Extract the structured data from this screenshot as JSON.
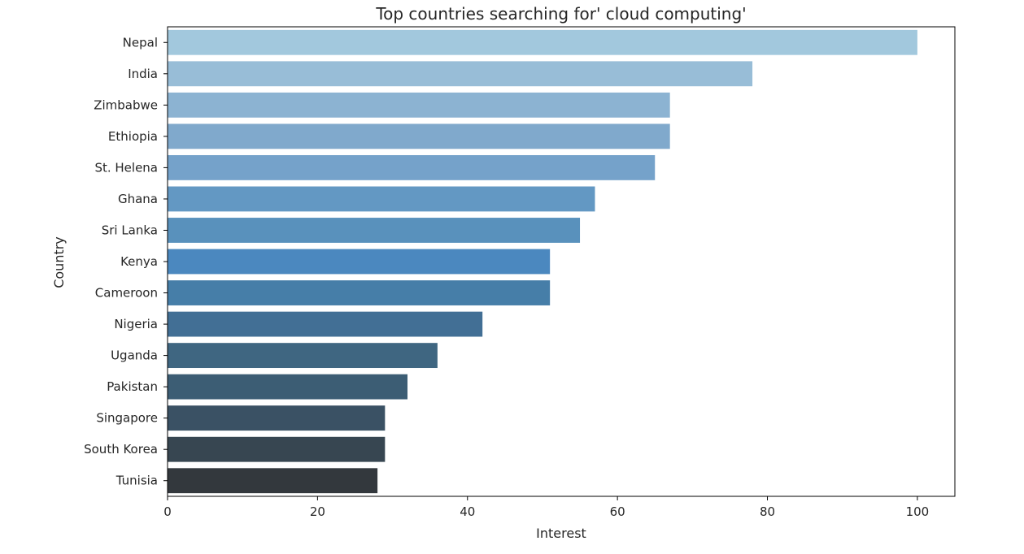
{
  "chart_data": {
    "type": "bar",
    "orientation": "horizontal",
    "title": "Top countries searching for' cloud computing'",
    "xlabel": "Interest",
    "ylabel": "Country",
    "xlim": [
      0,
      105
    ],
    "xticks": [
      "0",
      "20",
      "40",
      "60",
      "80",
      "100"
    ],
    "grid": false,
    "categories": [
      "Nepal",
      "India",
      "Zimbabwe",
      "Ethiopia",
      "St. Helena",
      "Ghana",
      "Sri Lanka",
      "Kenya",
      "Cameroon",
      "Nigeria",
      "Uganda",
      "Pakistan",
      "Singapore",
      "South Korea",
      "Tunisia"
    ],
    "values": [
      100,
      78,
      67,
      67,
      65,
      57,
      55,
      51,
      51,
      42,
      36,
      32,
      29,
      29,
      28
    ],
    "colors": [
      "#a2c8dd",
      "#98bdd7",
      "#8cb3d2",
      "#80a9cc",
      "#75a2ca",
      "#6398c3",
      "#5991bc",
      "#4b88bf",
      "#467ea8",
      "#426f95",
      "#3f6681",
      "#3c5d74",
      "#3a5164",
      "#374651",
      "#33383d"
    ]
  }
}
